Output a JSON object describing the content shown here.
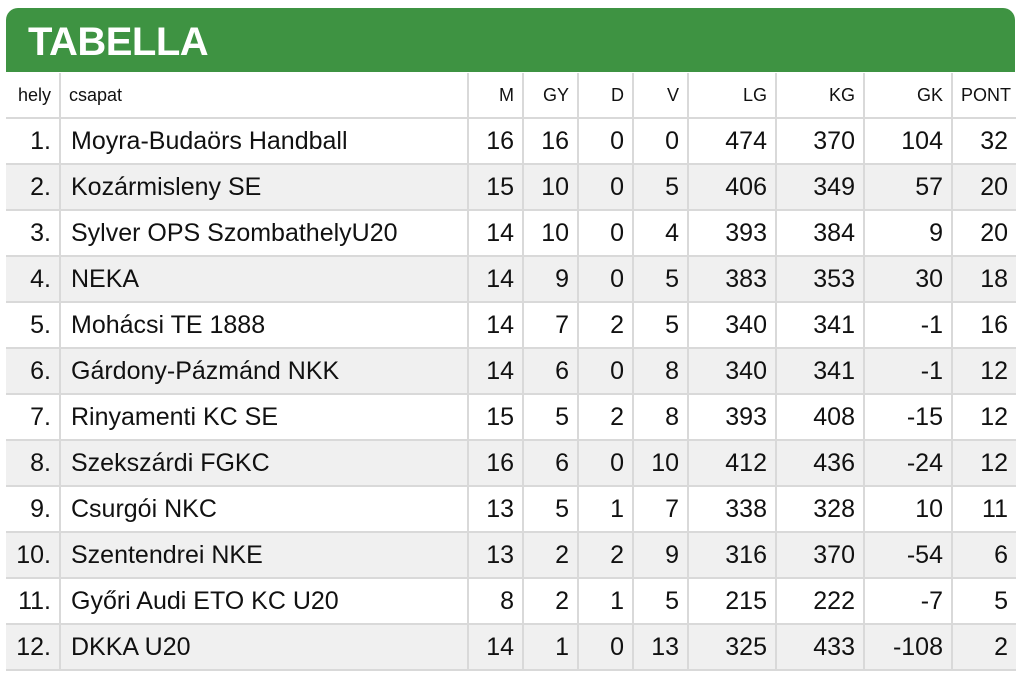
{
  "title": "TABELLA",
  "columns": [
    "hely",
    "csapat",
    "M",
    "GY",
    "D",
    "V",
    "LG",
    "KG",
    "GK",
    "PONT"
  ],
  "rows": [
    {
      "hely": "1.",
      "csapat": "Moyra-Budaörs Handball",
      "M": "16",
      "GY": "16",
      "D": "0",
      "V": "0",
      "LG": "474",
      "KG": "370",
      "GK": "104",
      "PONT": "32"
    },
    {
      "hely": "2.",
      "csapat": "Kozármisleny SE",
      "M": "15",
      "GY": "10",
      "D": "0",
      "V": "5",
      "LG": "406",
      "KG": "349",
      "GK": "57",
      "PONT": "20"
    },
    {
      "hely": "3.",
      "csapat": "Sylver OPS SzombathelyU20",
      "M": "14",
      "GY": "10",
      "D": "0",
      "V": "4",
      "LG": "393",
      "KG": "384",
      "GK": "9",
      "PONT": "20"
    },
    {
      "hely": "4.",
      "csapat": "NEKA",
      "M": "14",
      "GY": "9",
      "D": "0",
      "V": "5",
      "LG": "383",
      "KG": "353",
      "GK": "30",
      "PONT": "18"
    },
    {
      "hely": "5.",
      "csapat": "Mohácsi TE 1888",
      "M": "14",
      "GY": "7",
      "D": "2",
      "V": "5",
      "LG": "340",
      "KG": "341",
      "GK": "-1",
      "PONT": "16"
    },
    {
      "hely": "6.",
      "csapat": "Gárdony-Pázmánd NKK",
      "M": "14",
      "GY": "6",
      "D": "0",
      "V": "8",
      "LG": "340",
      "KG": "341",
      "GK": "-1",
      "PONT": "12"
    },
    {
      "hely": "7.",
      "csapat": "Rinyamenti KC SE",
      "M": "15",
      "GY": "5",
      "D": "2",
      "V": "8",
      "LG": "393",
      "KG": "408",
      "GK": "-15",
      "PONT": "12"
    },
    {
      "hely": "8.",
      "csapat": "Szekszárdi FGKC",
      "M": "16",
      "GY": "6",
      "D": "0",
      "V": "10",
      "LG": "412",
      "KG": "436",
      "GK": "-24",
      "PONT": "12"
    },
    {
      "hely": "9.",
      "csapat": "Csurgói NKC",
      "M": "13",
      "GY": "5",
      "D": "1",
      "V": "7",
      "LG": "338",
      "KG": "328",
      "GK": "10",
      "PONT": "11"
    },
    {
      "hely": "10.",
      "csapat": "Szentendrei NKE",
      "M": "13",
      "GY": "2",
      "D": "2",
      "V": "9",
      "LG": "316",
      "KG": "370",
      "GK": "-54",
      "PONT": "6"
    },
    {
      "hely": "11.",
      "csapat": "Győri Audi ETO KC U20",
      "M": "8",
      "GY": "2",
      "D": "1",
      "V": "5",
      "LG": "215",
      "KG": "222",
      "GK": "-7",
      "PONT": "5"
    },
    {
      "hely": "12.",
      "csapat": "DKKA U20",
      "M": "14",
      "GY": "1",
      "D": "0",
      "V": "13",
      "LG": "325",
      "KG": "433",
      "GK": "-108",
      "PONT": "2"
    }
  ],
  "colors": {
    "header_bg": "#3e9342",
    "header_text": "#ffffff",
    "row_alt_bg": "#f0f0f0",
    "grid": "#d9d9d9"
  }
}
